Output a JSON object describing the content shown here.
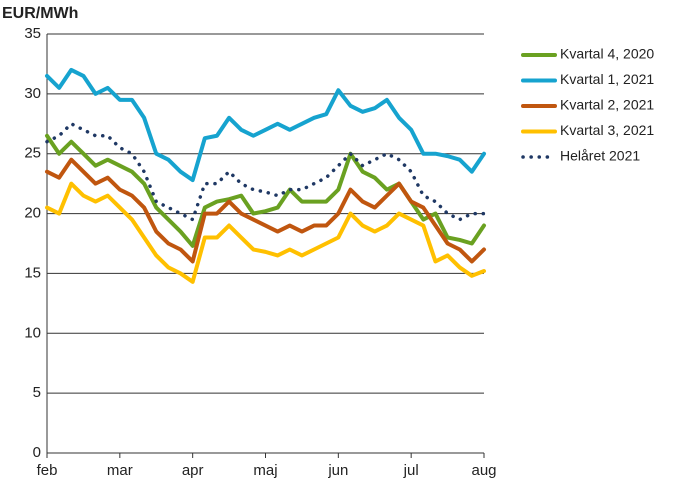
{
  "chart_data": {
    "type": "line",
    "y_label": "EUR/MWh",
    "categories": [
      "feb",
      null,
      null,
      null,
      null,
      null,
      "mar",
      null,
      null,
      null,
      null,
      null,
      "apr",
      null,
      null,
      null,
      null,
      null,
      "maj",
      null,
      null,
      null,
      null,
      null,
      "jun",
      null,
      null,
      null,
      null,
      null,
      "jul",
      null,
      null,
      null,
      null,
      null,
      "aug"
    ],
    "ylim": [
      0,
      35
    ],
    "yticks": [
      0,
      5,
      10,
      15,
      20,
      25,
      30,
      35
    ],
    "grid": true,
    "legend": "right",
    "series": [
      {
        "name": "Kvartal 4, 2020",
        "color": "#6aa121",
        "style": "solid",
        "values": [
          26.5,
          25,
          26,
          25,
          24,
          24.5,
          24,
          23.5,
          22.5,
          20.5,
          19.5,
          18.5,
          17.3,
          20.5,
          21,
          21.2,
          21.5,
          20,
          20.2,
          20.5,
          22,
          21,
          21,
          21,
          22,
          25,
          23.5,
          23,
          22,
          22.5,
          21,
          19.5,
          20,
          18,
          17.8,
          17.5,
          19
        ]
      },
      {
        "name": "Kvartal 1, 2021",
        "color": "#16a3cf",
        "style": "solid",
        "values": [
          31.5,
          30.5,
          32,
          31.5,
          30,
          30.5,
          29.5,
          29.5,
          28,
          25,
          24.5,
          23.5,
          22.8,
          26.3,
          26.5,
          28,
          27,
          26.5,
          27,
          27.5,
          27,
          27.5,
          28,
          28.3,
          30.3,
          29,
          28.5,
          28.8,
          29.5,
          28,
          27,
          25,
          25,
          24.8,
          24.5,
          23.5,
          25
        ]
      },
      {
        "name": "Kvartal 2, 2021",
        "color": "#c0560f",
        "style": "solid",
        "values": [
          23.5,
          23,
          24.5,
          23.5,
          22.5,
          23,
          22,
          21.5,
          20.5,
          18.5,
          17.5,
          17,
          16,
          20,
          20,
          21,
          20,
          19.5,
          19,
          18.5,
          19,
          18.5,
          19,
          19,
          20,
          22,
          21,
          20.5,
          21.5,
          22.5,
          21,
          20.5,
          19,
          17.5,
          17,
          16,
          17
        ]
      },
      {
        "name": "Kvartal 3, 2021",
        "color": "#ffc000",
        "style": "solid",
        "values": [
          20.5,
          20,
          22.5,
          21.5,
          21,
          21.5,
          20.5,
          19.5,
          18,
          16.5,
          15.5,
          15,
          14.3,
          18,
          18,
          19,
          18,
          17,
          16.8,
          16.5,
          17,
          16.5,
          17,
          17.5,
          18,
          20,
          19,
          18.5,
          19,
          20,
          19.5,
          19,
          16,
          16.5,
          15.5,
          14.8,
          15.2
        ]
      },
      {
        "name": "Helåret 2021",
        "color": "#1f3864",
        "style": "dotted",
        "values": [
          26,
          26.5,
          27.5,
          27,
          26.5,
          26.5,
          25.5,
          25,
          23.5,
          21,
          20.5,
          20,
          19.5,
          22.5,
          22.5,
          23.5,
          22.5,
          22,
          21.8,
          21.5,
          22,
          22,
          22.5,
          23,
          24,
          25,
          24,
          24.5,
          25,
          24.5,
          23.5,
          21.5,
          21,
          20,
          19.5,
          20,
          20
        ]
      }
    ]
  }
}
